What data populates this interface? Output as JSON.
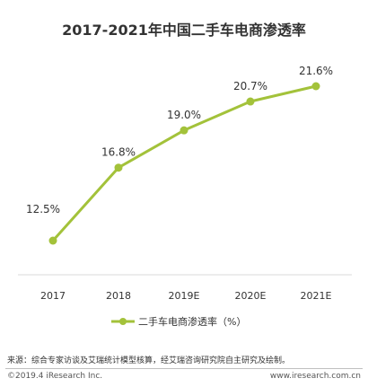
{
  "chart_data": {
    "type": "line",
    "title": "2017-2021年中国二手车电商渗透率",
    "categories": [
      "2017",
      "2018",
      "2019E",
      "2020E",
      "2021E"
    ],
    "series": [
      {
        "name": "二手车电商渗透率（%）",
        "values": [
          12.5,
          16.8,
          19.0,
          20.7,
          21.6
        ],
        "labels": [
          "12.5%",
          "16.8%",
          "19.0%",
          "20.7%",
          "21.6%"
        ]
      }
    ],
    "ylim": [
      8,
      23
    ],
    "grid": false,
    "legend": "bottom-center"
  },
  "colors": {
    "line": "#a3c23a",
    "axis": "#d9d9d9",
    "text": "#333333"
  },
  "footer": {
    "source": "来源：综合专家访谈及艾瑞统计模型核算，经艾瑞咨询研究院自主研究及绘制。",
    "copyright": "©2019.4 iResearch Inc.",
    "website": "www.iresearch.com.cn"
  }
}
